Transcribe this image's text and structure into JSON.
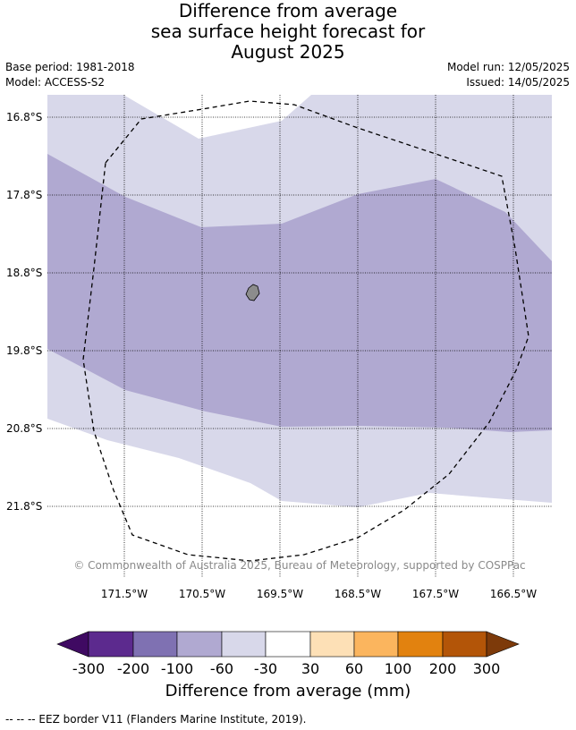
{
  "title": {
    "line1": "Difference from average",
    "line2": "sea surface height forecast for",
    "line3": "August 2025"
  },
  "meta": {
    "base_period": "Base period: 1981-2018",
    "model": "Model: ACCESS-S2",
    "model_run": "Model run: 12/05/2025",
    "issued": "Issued: 14/05/2025"
  },
  "map": {
    "lat_labels": [
      "16.8°S",
      "17.8°S",
      "18.8°S",
      "19.8°S",
      "20.8°S",
      "21.8°S"
    ],
    "lon_labels": [
      "171.5°W",
      "170.5°W",
      "169.5°W",
      "168.5°W",
      "167.5°W",
      "166.5°W"
    ],
    "copyright": "© Commonwealth of Australia 2025, Bureau of Meteorology, supported by COSPPac",
    "colors": {
      "band_-60_-30": "#d8d8ea",
      "band_-100_-60": "#b0a9d1",
      "land": "#8c8c8c",
      "grid": "#000000"
    }
  },
  "colorbar": {
    "ticks": [
      "-300",
      "-200",
      "-100",
      "-60",
      "-30",
      "30",
      "60",
      "100",
      "200",
      "300"
    ],
    "colors": [
      "#3f0a62",
      "#5c2a8e",
      "#7f71b2",
      "#b0a9d1",
      "#d8d8ea",
      "#ffffff",
      "#fde0b6",
      "#fbb55e",
      "#e2820f",
      "#b35508",
      "#7d3a0a"
    ],
    "label": "Difference from average (mm)"
  },
  "footnote": "--  --  -- EEZ border V11 (Flanders Marine Institute, 2019)."
}
